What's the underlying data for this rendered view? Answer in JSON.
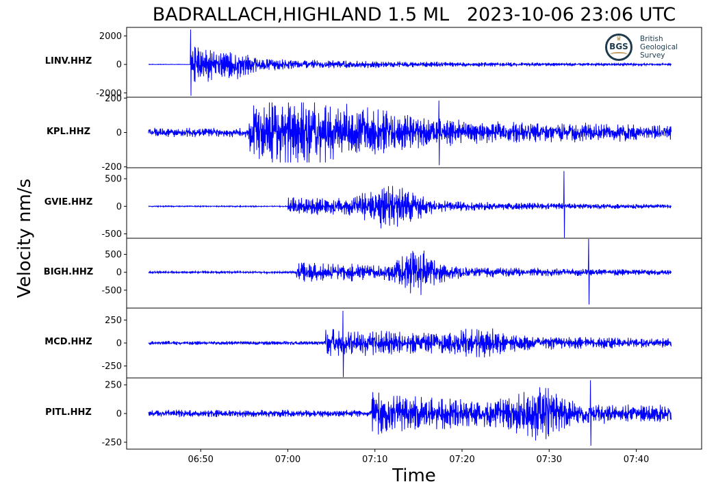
{
  "title": "BADRALLACH,HIGHLAND 1.5 ML   2023-10-06 23:06 UTC",
  "logo": {
    "acronym": "BGS",
    "name_lines": [
      "British",
      "Geological",
      "Survey"
    ]
  },
  "chart_data": {
    "type": "line",
    "title": "BADRALLACH,HIGHLAND 1.5 ML   2023-10-06 23:06 UTC",
    "xlabel": "Time",
    "ylabel": "Velocity nm/s",
    "x_ticks": [
      "06:50",
      "07:00",
      "07:10",
      "07:20",
      "07:30",
      "07:40"
    ],
    "x_range": [
      "06:41:30",
      "07:47:30"
    ],
    "trace_window": [
      "06:44",
      "07:44"
    ],
    "line_color": "#0000ff",
    "grid": false,
    "legend": "none",
    "series": [
      {
        "name": "LINV.HHZ",
        "ylim": [
          -2300,
          2600
        ],
        "yticks": [
          2000,
          0,
          -2000
        ],
        "ytick_labels": [
          "2000",
          "0",
          "-2000"
        ],
        "onset": "06:48:50",
        "peak": 2450,
        "trough": -2200,
        "coda_amplitude": 500,
        "background_amplitude": 15
      },
      {
        "name": "KPL.HHZ",
        "ylim": [
          -205,
          205
        ],
        "yticks": [
          200,
          0,
          -200
        ],
        "ytick_labels": [
          "200",
          "0",
          "-200"
        ],
        "onset": "06:55:30",
        "peak": 185,
        "trough": -190,
        "coda_amplitude": 120,
        "background_amplitude": 25
      },
      {
        "name": "GVIE.HHZ",
        "ylim": [
          -580,
          700
        ],
        "yticks": [
          500,
          0,
          -500
        ],
        "ytick_labels": [
          "500",
          "0",
          "-500"
        ],
        "onset": "07:00:00",
        "peak": 640,
        "trough": -570,
        "coda_amplitude": 150,
        "background_amplitude": 10
      },
      {
        "name": "BIGH.HHZ",
        "ylim": [
          -1000,
          950
        ],
        "yticks": [
          500,
          0,
          -500
        ],
        "ytick_labels": [
          "500",
          "0",
          "-500"
        ],
        "onset": "07:01:00",
        "peak": 930,
        "trough": -900,
        "coda_amplitude": 250,
        "background_amplitude": 30
      },
      {
        "name": "MCD.HHZ",
        "ylim": [
          -380,
          380
        ],
        "yticks": [
          250,
          0,
          -250
        ],
        "ytick_labels": [
          "250",
          "0",
          "-250"
        ],
        "onset": "07:04:20",
        "peak": 350,
        "trough": -370,
        "coda_amplitude": 130,
        "background_amplitude": 20
      },
      {
        "name": "PITL.HHZ",
        "ylim": [
          -310,
          310
        ],
        "yticks": [
          250,
          0,
          -250
        ],
        "ytick_labels": [
          "250",
          "0",
          "-250"
        ],
        "onset": "07:09:40",
        "peak": 290,
        "trough": -280,
        "coda_amplitude": 140,
        "background_amplitude": 30
      }
    ]
  }
}
